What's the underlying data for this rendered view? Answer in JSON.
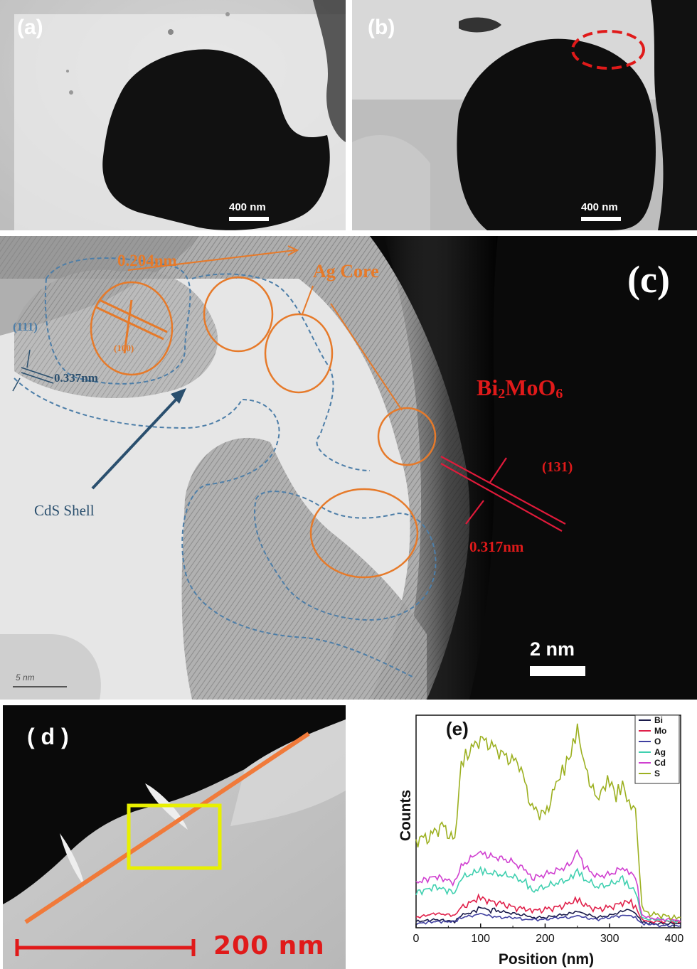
{
  "panels": {
    "a": {
      "label": "(a)",
      "scale": "400 nm"
    },
    "b": {
      "label": "(b)",
      "scale": "400 nm"
    },
    "c": {
      "label": "(c)",
      "scale": "2 nm",
      "inset_scale": "5 nm",
      "annotations": {
        "d_ag": "0.204nm",
        "ag_core": "Ag Core",
        "cds_plane": "(111)",
        "ag_plane": "(100)",
        "d_cds": "0.337nm",
        "bimoo_sub": "2",
        "bimoo_b": "MoO",
        "bimoo_sub2": "6",
        "bimoo_a": "Bi",
        "bimoo_plane": "(131)",
        "d_bimoo": "0.317nm",
        "cds_shell": "CdS Shell"
      }
    },
    "d": {
      "label": "( d )",
      "scale": "200 nm"
    },
    "e": {
      "label": "(e)"
    }
  },
  "chart_data": {
    "type": "line",
    "xlabel": "Position (nm)",
    "ylabel": "Counts",
    "xlim": [
      0,
      410
    ],
    "x_ticks": [
      0,
      100,
      200,
      300,
      400
    ],
    "legend_position": "top-right",
    "series": [
      {
        "name": "Bi",
        "color": "#1a1a4a",
        "x": [
          0,
          30,
          60,
          70,
          90,
          100,
          110,
          130,
          150,
          170,
          180,
          200,
          220,
          240,
          250,
          260,
          280,
          300,
          320,
          330,
          340,
          350,
          360,
          380,
          400,
          410
        ],
        "values": [
          0.03,
          0.04,
          0.03,
          0.06,
          0.08,
          0.1,
          0.09,
          0.08,
          0.07,
          0.06,
          0.05,
          0.05,
          0.06,
          0.07,
          0.08,
          0.07,
          0.05,
          0.06,
          0.08,
          0.09,
          0.07,
          0.03,
          0.02,
          0.02,
          0.02,
          0.02
        ]
      },
      {
        "name": "Mo",
        "color": "#e0204a",
        "x": [
          0,
          30,
          60,
          70,
          90,
          100,
          110,
          130,
          150,
          170,
          180,
          200,
          220,
          240,
          250,
          260,
          280,
          300,
          320,
          330,
          340,
          350,
          360,
          380,
          400,
          410
        ],
        "values": [
          0.05,
          0.07,
          0.06,
          0.1,
          0.13,
          0.15,
          0.13,
          0.12,
          0.1,
          0.09,
          0.08,
          0.09,
          0.1,
          0.12,
          0.14,
          0.11,
          0.09,
          0.1,
          0.12,
          0.13,
          0.1,
          0.04,
          0.03,
          0.03,
          0.03,
          0.03
        ]
      },
      {
        "name": "O",
        "color": "#4040a0",
        "x": [
          0,
          30,
          60,
          70,
          90,
          100,
          110,
          130,
          150,
          170,
          180,
          200,
          220,
          240,
          250,
          260,
          280,
          300,
          320,
          330,
          340,
          350,
          360,
          380,
          400,
          410
        ],
        "values": [
          0.02,
          0.03,
          0.03,
          0.05,
          0.06,
          0.07,
          0.06,
          0.05,
          0.05,
          0.04,
          0.04,
          0.04,
          0.05,
          0.05,
          0.06,
          0.05,
          0.04,
          0.05,
          0.06,
          0.06,
          0.05,
          0.02,
          0.02,
          0.01,
          0.01,
          0.01
        ]
      },
      {
        "name": "Ag",
        "color": "#40d0b0",
        "x": [
          0,
          30,
          60,
          70,
          90,
          100,
          110,
          130,
          150,
          170,
          180,
          200,
          220,
          240,
          250,
          260,
          280,
          300,
          320,
          330,
          340,
          350,
          360,
          380,
          400,
          410
        ],
        "values": [
          0.17,
          0.2,
          0.17,
          0.24,
          0.27,
          0.28,
          0.27,
          0.26,
          0.25,
          0.22,
          0.18,
          0.2,
          0.22,
          0.24,
          0.28,
          0.24,
          0.2,
          0.21,
          0.24,
          0.2,
          0.18,
          0.05,
          0.04,
          0.04,
          0.03,
          0.03
        ]
      },
      {
        "name": "Cd",
        "color": "#d040d0",
        "x": [
          0,
          30,
          60,
          70,
          90,
          100,
          110,
          130,
          150,
          170,
          180,
          200,
          220,
          240,
          250,
          260,
          280,
          300,
          320,
          330,
          340,
          350,
          360,
          380,
          400,
          410
        ],
        "values": [
          0.22,
          0.25,
          0.22,
          0.3,
          0.35,
          0.37,
          0.35,
          0.34,
          0.32,
          0.28,
          0.24,
          0.26,
          0.28,
          0.31,
          0.38,
          0.3,
          0.25,
          0.26,
          0.29,
          0.27,
          0.25,
          0.06,
          0.05,
          0.04,
          0.04,
          0.03
        ]
      },
      {
        "name": "S",
        "color": "#9cb020",
        "x": [
          0,
          20,
          40,
          60,
          70,
          80,
          100,
          120,
          140,
          160,
          180,
          200,
          220,
          230,
          240,
          250,
          260,
          280,
          290,
          300,
          310,
          320,
          330,
          340,
          350,
          360,
          380,
          400,
          410
        ],
        "values": [
          0.43,
          0.44,
          0.5,
          0.42,
          0.8,
          0.85,
          0.92,
          0.88,
          0.83,
          0.8,
          0.58,
          0.55,
          0.72,
          0.78,
          0.85,
          0.97,
          0.8,
          0.62,
          0.68,
          0.72,
          0.64,
          0.7,
          0.6,
          0.58,
          0.1,
          0.07,
          0.06,
          0.05,
          0.05
        ]
      }
    ]
  }
}
